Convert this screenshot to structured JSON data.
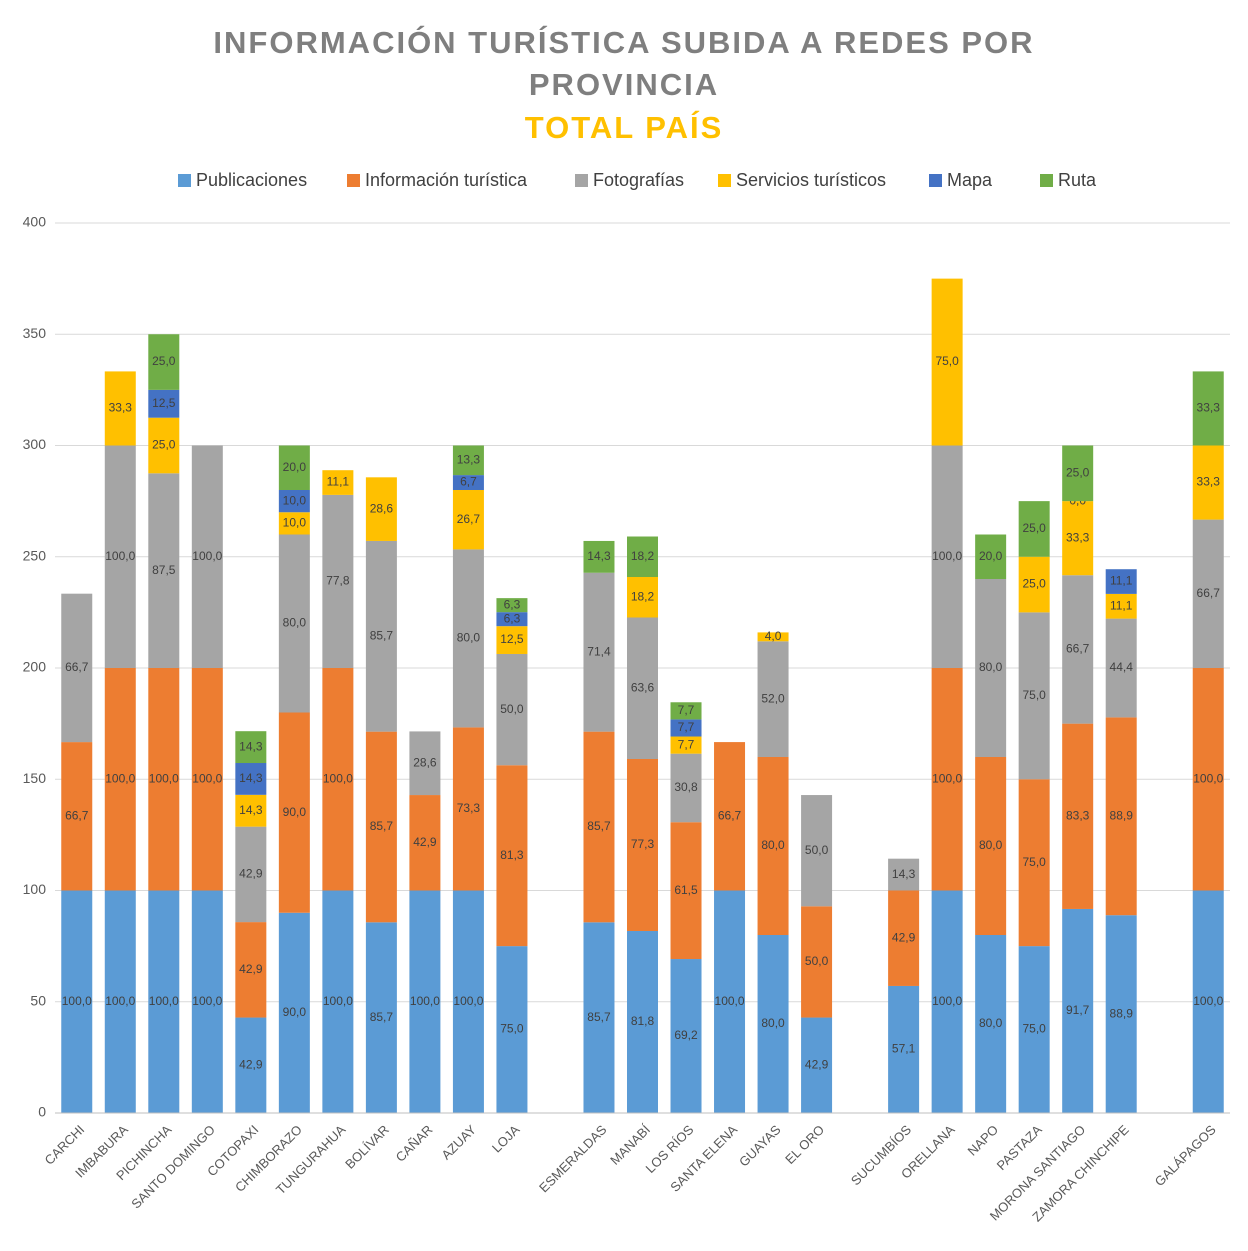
{
  "chart_data": {
    "type": "stacked_bar",
    "title": "INFORMACIÓN TURÍSTICA SUBIDA A REDES POR PROVINCIA",
    "subtitle": "TOTAL PAÍS",
    "categories": [
      "CARCHI",
      "IMBABURA",
      "PICHINCHA",
      "SANTO DOMINGO",
      "COTOPAXI",
      "CHIMBORAZO",
      "TUNGURAHUA",
      "BOLÍVAR",
      "CAÑAR",
      "AZUAY",
      "LOJA",
      null,
      "ESMERALDAS",
      "MANABÍ",
      "LOS RÍOS",
      "SANTA ELENA",
      "GUAYAS",
      "EL ORO",
      null,
      "SUCUMBÍOS",
      "ORELLANA",
      "NAPO",
      "PASTAZA",
      "MORONA SANTIAGO",
      "ZAMORA CHINCHIPE",
      null,
      "GALÁPAGOS"
    ],
    "series": [
      {
        "name": "Publicaciones",
        "color": "#5b9bd5",
        "values": [
          100,
          100,
          100,
          100,
          42.9,
          90,
          100,
          85.7,
          100,
          100,
          75,
          null,
          85.7,
          81.8,
          69.2,
          100,
          80,
          42.9,
          null,
          57.1,
          100,
          80,
          75,
          91.7,
          88.9,
          null,
          100
        ],
        "value_labels": [
          "100,0",
          "100,0",
          "100,0",
          "100,0",
          "42,9",
          "90,0",
          "100,0",
          "85,7",
          "100,0",
          "100,0",
          "75,0",
          null,
          "85,7",
          "81,8",
          "69,2",
          "100,0",
          "80,0",
          "42,9",
          null,
          "57,1",
          "100,0",
          "80,0",
          "75,0",
          "91,7",
          "88,9",
          null,
          "100,0"
        ]
      },
      {
        "name": "Información turística",
        "color": "#ed7d31",
        "values": [
          66.7,
          100,
          100,
          100,
          42.9,
          90,
          100,
          85.7,
          42.9,
          73.3,
          81.3,
          null,
          85.7,
          77.3,
          61.5,
          66.7,
          80,
          50,
          null,
          42.9,
          100,
          80,
          75,
          83.3,
          88.9,
          null,
          100
        ],
        "value_labels": [
          "66,7",
          "100,0",
          "100,0",
          "100,0",
          "42,9",
          "90,0",
          "100,0",
          "85,7",
          "42,9",
          "73,3",
          "81,3",
          null,
          "85,7",
          "77,3",
          "61,5",
          "66,7",
          "80,0",
          "50,0",
          null,
          "42,9",
          "100,0",
          "80,0",
          "75,0",
          "83,3",
          "88,9",
          null,
          "100,0"
        ]
      },
      {
        "name": "Fotografías",
        "color": "#a5a5a5",
        "values": [
          66.7,
          100,
          87.5,
          100,
          42.9,
          80,
          77.8,
          85.7,
          28.6,
          80,
          50,
          null,
          71.4,
          63.6,
          30.8,
          null,
          52,
          50,
          null,
          14.3,
          100,
          80,
          75,
          66.7,
          44.4,
          null,
          66.7
        ],
        "value_labels": [
          "66,7",
          "100,0",
          "87,5",
          "100,0",
          "42,9",
          "80,0",
          "77,8",
          "85,7",
          "28,6",
          "80,0",
          "50,0",
          null,
          "71,4",
          "63,6",
          "30,8",
          null,
          "52,0",
          "50,0",
          null,
          "14,3",
          "100,0",
          "80,0",
          "75,0",
          "66,7",
          "44,4",
          null,
          "66,7"
        ]
      },
      {
        "name": "Servicios turísticos",
        "color": "#ffc000",
        "values": [
          null,
          33.3,
          25,
          null,
          14.3,
          10,
          11.1,
          28.6,
          null,
          26.7,
          12.5,
          null,
          null,
          18.2,
          7.7,
          null,
          4,
          null,
          null,
          null,
          75,
          null,
          25,
          33.3,
          11.1,
          null,
          33.3
        ],
        "value_labels": [
          null,
          "33,3",
          "25,0",
          null,
          "14,3",
          "10,0",
          "11,1",
          "28,6",
          null,
          "26,7",
          "12,5",
          null,
          null,
          "18,2",
          "7,7",
          null,
          "4,0",
          null,
          null,
          null,
          "75,0",
          null,
          "25,0",
          "33,3",
          "11,1",
          null,
          "33,3"
        ]
      },
      {
        "name": "Mapa",
        "color": "#4472c4",
        "values": [
          null,
          null,
          12.5,
          null,
          14.3,
          10,
          null,
          null,
          null,
          6.7,
          6.3,
          null,
          null,
          null,
          7.7,
          null,
          null,
          null,
          null,
          null,
          null,
          null,
          null,
          0,
          11.1,
          null,
          null
        ],
        "value_labels": [
          null,
          null,
          "12,5",
          null,
          "14,3",
          "10,0",
          null,
          null,
          null,
          "6,7",
          "6,3",
          null,
          null,
          null,
          "7,7",
          null,
          null,
          null,
          null,
          null,
          null,
          null,
          null,
          "0,0",
          "11,1",
          null,
          null
        ]
      },
      {
        "name": "Ruta",
        "color": "#70ad47",
        "values": [
          null,
          null,
          25,
          null,
          14.3,
          20,
          null,
          null,
          null,
          13.3,
          6.3,
          null,
          14.3,
          18.2,
          7.7,
          null,
          null,
          null,
          null,
          null,
          null,
          20,
          25,
          25,
          null,
          null,
          33.3
        ],
        "value_labels": [
          null,
          null,
          "25,0",
          null,
          "14,3",
          "20,0",
          null,
          null,
          null,
          "13,3",
          "6,3",
          null,
          "14,3",
          "18,2",
          "7,7",
          null,
          null,
          null,
          null,
          null,
          null,
          "20,0",
          "25,0",
          "25,0",
          null,
          null,
          "33,3"
        ]
      }
    ],
    "ylim": [
      0,
      400
    ],
    "yticks": [
      0,
      50,
      100,
      150,
      200,
      250,
      300,
      350,
      400
    ],
    "grid": true,
    "legend": "top"
  }
}
